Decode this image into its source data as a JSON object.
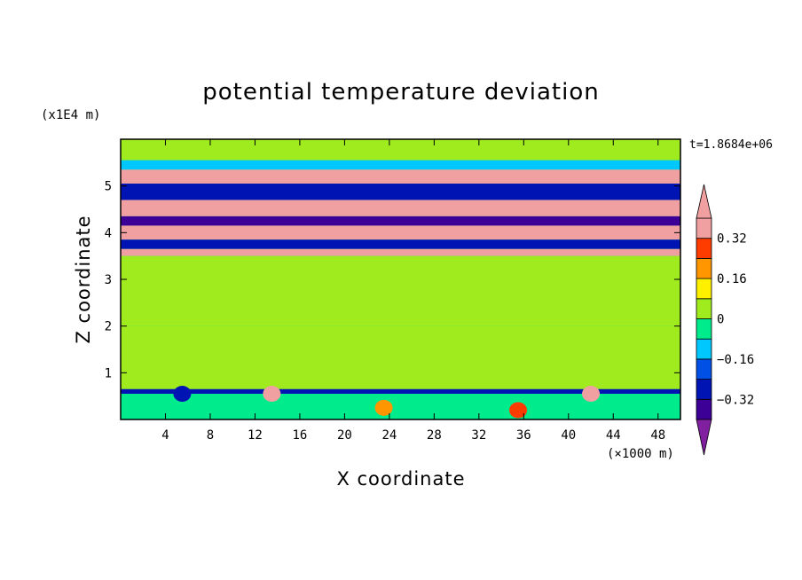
{
  "chart_data": {
    "type": "heatmap",
    "title": "potential temperature deviation",
    "xlabel": "X coordinate",
    "ylabel": "Z coordinate",
    "x_unit": "(×1000 m)",
    "y_unit": "(x1E4 m)",
    "time_label": "t=1.8684e+06",
    "xlim": [
      0,
      50
    ],
    "ylim": [
      0,
      6
    ],
    "x_ticks": [
      4,
      8,
      12,
      16,
      20,
      24,
      28,
      32,
      36,
      40,
      44,
      48
    ],
    "y_ticks": [
      1,
      2,
      3,
      4,
      5
    ],
    "colorbar": {
      "levels": [
        -0.4,
        -0.32,
        -0.24,
        -0.16,
        -0.08,
        0,
        0.08,
        0.16,
        0.24,
        0.32,
        0.4
      ],
      "colors": [
        "#8020a0",
        "#3c0096",
        "#0014b4",
        "#0050e6",
        "#00c8ff",
        "#00eb8c",
        "#a0eb1e",
        "#fff000",
        "#ff9600",
        "#ff3c00",
        "#f0a0a0"
      ],
      "labels": [
        "0.32",
        "0.16",
        "0",
        "−0.16",
        "−0.32"
      ],
      "label_values": [
        0.32,
        0.16,
        0,
        -0.16,
        -0.32
      ]
    },
    "bands": [
      {
        "z": [
          5.55,
          6.0
        ],
        "value": 0.05
      },
      {
        "z": [
          5.35,
          5.55
        ],
        "value": -0.15
      },
      {
        "z": [
          5.05,
          5.35
        ],
        "value": 0.42
      },
      {
        "z": [
          4.7,
          5.05
        ],
        "value": -0.3
      },
      {
        "z": [
          4.35,
          4.7
        ],
        "value": 0.42
      },
      {
        "z": [
          4.15,
          4.35
        ],
        "value": -0.35
      },
      {
        "z": [
          3.85,
          4.15
        ],
        "value": 0.42
      },
      {
        "z": [
          3.65,
          3.85
        ],
        "value": -0.3
      },
      {
        "z": [
          3.5,
          3.65
        ],
        "value": 0.42
      },
      {
        "z": [
          2.0,
          3.5
        ],
        "value": 0.03
      },
      {
        "z": [
          0.65,
          2.0
        ],
        "value": 0.06
      },
      {
        "z": [
          0.55,
          0.65
        ],
        "value": -0.25
      },
      {
        "z": [
          0.0,
          0.55
        ],
        "value": -0.05
      }
    ],
    "features": [
      {
        "x": 35.5,
        "z": 0.2,
        "value": 0.3
      },
      {
        "x": 23.5,
        "z": 0.25,
        "value": 0.2
      },
      {
        "x": 13.5,
        "z": 0.55,
        "value": 0.42
      },
      {
        "x": 42.0,
        "z": 0.55,
        "value": 0.42
      },
      {
        "x": 5.5,
        "z": 0.55,
        "value": -0.3
      }
    ]
  }
}
